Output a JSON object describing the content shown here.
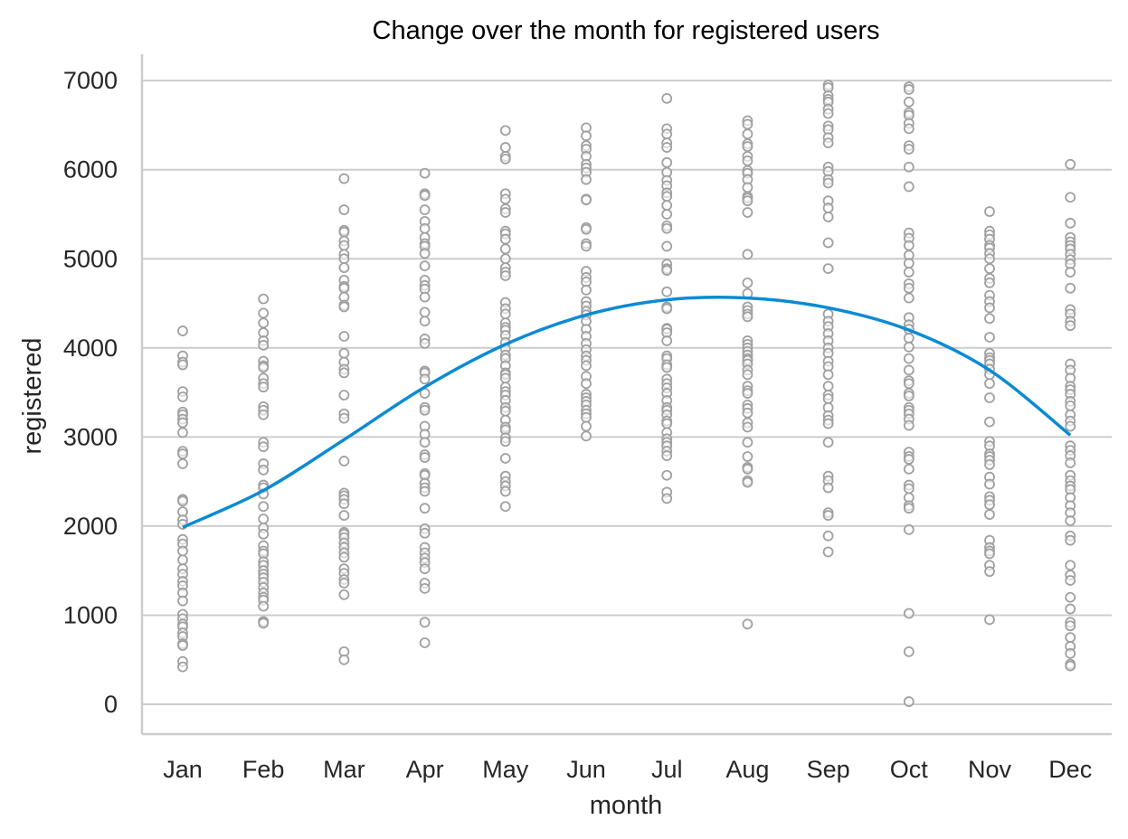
{
  "chart_data": {
    "type": "scatter",
    "title": "Change over the month for registered users",
    "xlabel": "month",
    "ylabel": "registered",
    "categories": [
      "Jan",
      "Feb",
      "Mar",
      "Apr",
      "May",
      "Jun",
      "Jul",
      "Aug",
      "Sep",
      "Oct",
      "Nov",
      "Dec"
    ],
    "ylim": [
      -330,
      7290
    ],
    "yticks": [
      0,
      1000,
      2000,
      3000,
      4000,
      5000,
      6000,
      7000
    ],
    "grid": "horizontal",
    "legend": "none",
    "colors": {
      "points": "#a0a0a0",
      "trend": "#0b8bd3",
      "grid": "#cccccc",
      "axis": "#cccccc"
    },
    "series": [
      {
        "kind": "points",
        "values_by_month": [
          [
            4190,
            3910,
            3840,
            3810,
            3510,
            3450,
            3280,
            3250,
            3200,
            3160,
            3050,
            2840,
            2810,
            2700,
            2300,
            2280,
            2160,
            2070,
            2020,
            1850,
            1800,
            1720,
            1620,
            1520,
            1460,
            1380,
            1330,
            1250,
            1160,
            1010,
            960,
            900,
            870,
            800,
            760,
            680,
            660,
            480,
            420
          ],
          [
            4550,
            4390,
            4280,
            4170,
            4080,
            4030,
            3850,
            3800,
            3780,
            3660,
            3600,
            3560,
            3340,
            3300,
            3250,
            2940,
            2890,
            2700,
            2630,
            2460,
            2430,
            2360,
            2220,
            2080,
            1980,
            1910,
            1780,
            1720,
            1690,
            1600,
            1560,
            1500,
            1460,
            1420,
            1370,
            1310,
            1250,
            1200,
            1170,
            1100,
            930,
            910
          ],
          [
            5900,
            5550,
            5320,
            5300,
            5200,
            5150,
            5050,
            5000,
            4900,
            4760,
            4690,
            4670,
            4570,
            4480,
            4460,
            4130,
            3940,
            3840,
            3760,
            3720,
            3470,
            3260,
            3210,
            2730,
            2370,
            2340,
            2300,
            2250,
            2120,
            1930,
            1910,
            1870,
            1810,
            1760,
            1700,
            1650,
            1520,
            1470,
            1400,
            1360,
            1230,
            590,
            500
          ],
          [
            5960,
            5730,
            5710,
            5550,
            5420,
            5340,
            5240,
            5170,
            5140,
            5060,
            4920,
            4760,
            4700,
            4660,
            4570,
            4400,
            4300,
            4100,
            4050,
            3740,
            3720,
            3650,
            3490,
            3330,
            3300,
            3120,
            3030,
            2940,
            2800,
            2770,
            2590,
            2570,
            2480,
            2430,
            2390,
            2200,
            1970,
            1920,
            1760,
            1700,
            1640,
            1590,
            1520,
            1360,
            1300,
            920,
            690
          ],
          [
            6440,
            6250,
            6150,
            6120,
            5730,
            5670,
            5560,
            5520,
            5310,
            5280,
            5220,
            5110,
            5000,
            4900,
            4850,
            4810,
            4510,
            4440,
            4380,
            4280,
            4230,
            4200,
            4140,
            4060,
            3990,
            3920,
            3880,
            3800,
            3720,
            3700,
            3660,
            3560,
            3510,
            3470,
            3410,
            3330,
            3290,
            3190,
            3110,
            3080,
            2990,
            2950,
            2760,
            2560,
            2500,
            2450,
            2390,
            2220
          ],
          [
            6470,
            6380,
            6270,
            6230,
            6150,
            6060,
            6020,
            5970,
            5890,
            5670,
            5660,
            5350,
            5330,
            5170,
            5140,
            4860,
            4790,
            4740,
            4650,
            4520,
            4470,
            4410,
            4370,
            4300,
            4210,
            4130,
            4050,
            3980,
            3910,
            3860,
            3800,
            3680,
            3600,
            3480,
            3440,
            3400,
            3360,
            3300,
            3260,
            3220,
            3120,
            3010
          ],
          [
            6800,
            6460,
            6400,
            6300,
            6250,
            6080,
            5970,
            5880,
            5820,
            5740,
            5700,
            5600,
            5500,
            5370,
            5340,
            5140,
            4940,
            4890,
            4870,
            4630,
            4460,
            4440,
            4220,
            4210,
            4170,
            4080,
            3910,
            3880,
            3810,
            3780,
            3650,
            3600,
            3550,
            3490,
            3410,
            3330,
            3300,
            3250,
            3180,
            3150,
            3050,
            2980,
            2940,
            2900,
            2840,
            2790,
            2570,
            2380,
            2310
          ],
          [
            6550,
            6510,
            6400,
            6290,
            6260,
            6150,
            6100,
            5990,
            5960,
            5890,
            5800,
            5700,
            5680,
            5650,
            5520,
            5050,
            4730,
            4610,
            4460,
            4420,
            4380,
            4350,
            4080,
            4040,
            4000,
            3960,
            3920,
            3880,
            3860,
            3820,
            3750,
            3700,
            3570,
            3520,
            3490,
            3360,
            3320,
            3270,
            3160,
            3110,
            2940,
            2780,
            2660,
            2640,
            2510,
            2490,
            900
          ],
          [
            6950,
            6920,
            6830,
            6790,
            6760,
            6680,
            6630,
            6490,
            6450,
            6360,
            6300,
            6030,
            5980,
            5890,
            5850,
            5650,
            5570,
            5470,
            5180,
            4890,
            4380,
            4300,
            4240,
            4160,
            4080,
            4000,
            3940,
            3850,
            3790,
            3700,
            3570,
            3470,
            3430,
            3330,
            3240,
            3190,
            3150,
            2940,
            2560,
            2510,
            2430,
            2150,
            2120,
            1890,
            1710
          ],
          [
            6930,
            6900,
            6760,
            6640,
            6610,
            6520,
            6460,
            6270,
            6230,
            6030,
            5810,
            5290,
            5230,
            5150,
            5040,
            4950,
            4850,
            4720,
            4670,
            4560,
            4340,
            4260,
            4210,
            4110,
            4010,
            3880,
            3750,
            3630,
            3600,
            3490,
            3460,
            3330,
            3300,
            3260,
            3200,
            3130,
            2830,
            2780,
            2750,
            2640,
            2460,
            2420,
            2320,
            2230,
            2200,
            1960,
            1020,
            590,
            30
          ],
          [
            5530,
            5310,
            5270,
            5220,
            5150,
            5120,
            5060,
            5000,
            4890,
            4780,
            4730,
            4590,
            4520,
            4450,
            4330,
            4120,
            3940,
            3890,
            3860,
            3820,
            3760,
            3700,
            3600,
            3440,
            3170,
            2950,
            2900,
            2810,
            2780,
            2740,
            2690,
            2550,
            2470,
            2330,
            2290,
            2240,
            2130,
            1840,
            1760,
            1720,
            1690,
            1560,
            1490,
            950
          ],
          [
            6060,
            5690,
            5400,
            5240,
            5190,
            5150,
            5110,
            5050,
            4990,
            4940,
            4850,
            4670,
            4430,
            4380,
            4300,
            4250,
            3820,
            3750,
            3660,
            3570,
            3530,
            3480,
            3400,
            3350,
            3250,
            3180,
            3120,
            2900,
            2850,
            2790,
            2710,
            2570,
            2510,
            2450,
            2410,
            2320,
            2230,
            2150,
            2060,
            1890,
            1840,
            1560,
            1450,
            1390,
            1200,
            1070,
            920,
            880,
            750,
            650,
            570,
            450,
            430
          ]
        ]
      },
      {
        "kind": "trend",
        "x": [
          1,
          2,
          3,
          4,
          5,
          6,
          7,
          8,
          9,
          10,
          11,
          12
        ],
        "values": [
          1986,
          2400,
          2970,
          3560,
          4040,
          4370,
          4540,
          4560,
          4450,
          4200,
          3750,
          3020
        ]
      }
    ]
  }
}
